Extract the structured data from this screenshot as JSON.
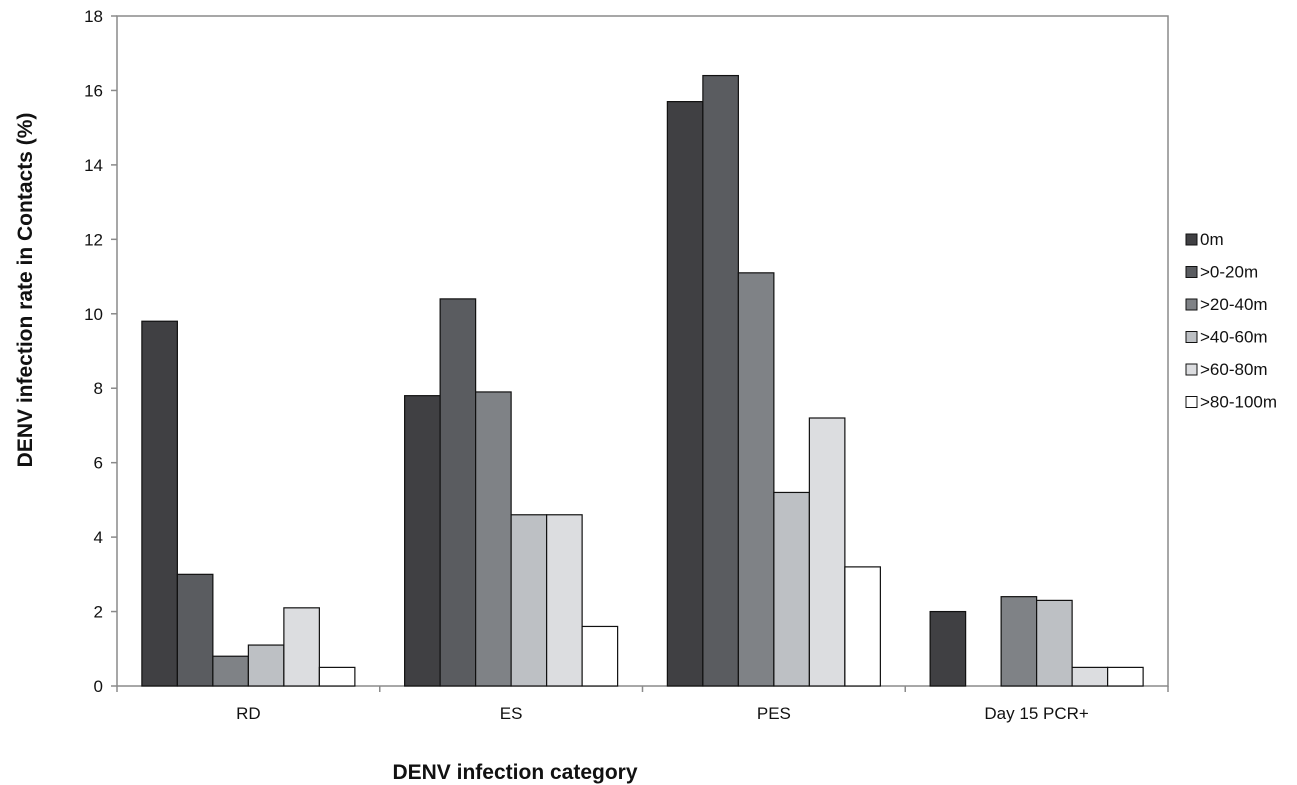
{
  "chart_data": {
    "type": "bar",
    "title": "",
    "xlabel": "DENV infection category",
    "ylabel": "DENV infection rate in Contacts (%)",
    "ylim": [
      0,
      18
    ],
    "yticks": [
      0,
      2,
      4,
      6,
      8,
      10,
      12,
      14,
      16,
      18
    ],
    "grid": false,
    "legend_position": "right",
    "categories": [
      "RD",
      "ES",
      "PES",
      "Day 15 PCR+"
    ],
    "series": [
      {
        "name": "0m",
        "color": "#404043",
        "values": [
          9.8,
          7.8,
          15.7,
          2.0
        ]
      },
      {
        "name": ">0-20m",
        "color": "#5a5c60",
        "values": [
          3.0,
          10.4,
          16.4,
          0
        ]
      },
      {
        "name": ">20-40m",
        "color": "#7f8286",
        "values": [
          0.8,
          7.9,
          11.1,
          2.4
        ]
      },
      {
        "name": ">40-60m",
        "color": "#bdc0c4",
        "values": [
          1.1,
          4.6,
          5.2,
          2.3
        ]
      },
      {
        "name": ">60-80m",
        "color": "#dcdde0",
        "values": [
          2.1,
          4.6,
          7.2,
          0.5
        ]
      },
      {
        "name": ">80-100m",
        "color": "#ffffff",
        "values": [
          0.5,
          1.6,
          3.2,
          0.5
        ]
      }
    ]
  }
}
